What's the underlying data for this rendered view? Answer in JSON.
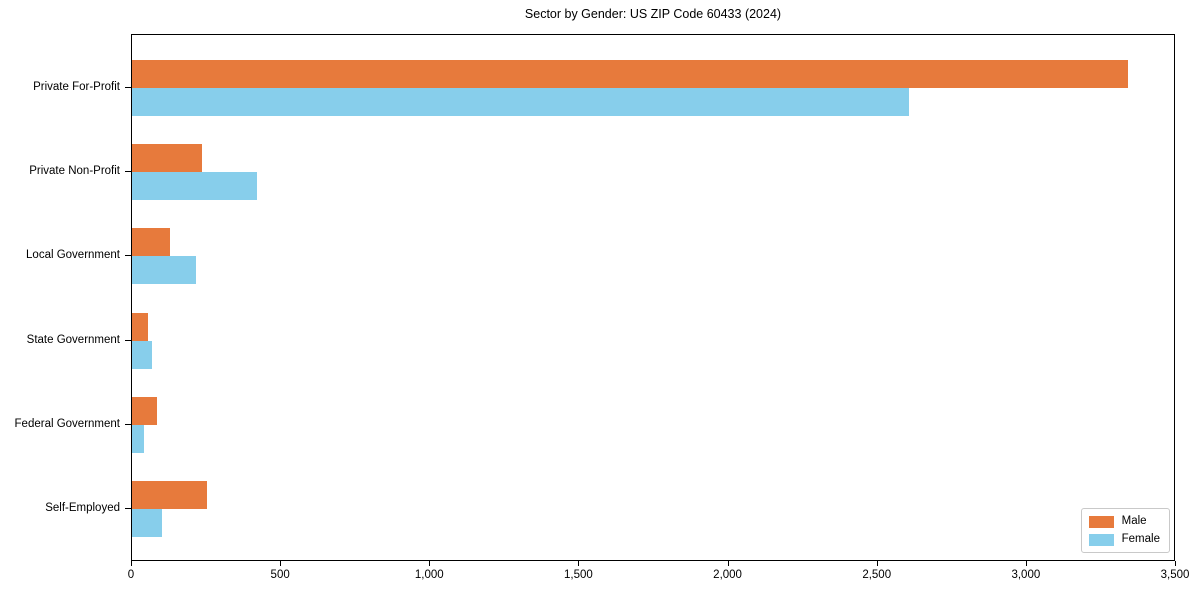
{
  "title": "Sector by Gender: US ZIP Code 60433 (2024)",
  "colors": {
    "male": "#e77a3c",
    "female": "#87ceeb",
    "axis": "#000000",
    "legend_border": "#c9c9c9",
    "background": "#ffffff"
  },
  "chart_data": {
    "type": "bar",
    "orientation": "horizontal",
    "title": "Sector by Gender: US ZIP Code 60433 (2024)",
    "categories": [
      "Private For-Profit",
      "Private Non-Profit",
      "Local Government",
      "State Government",
      "Federal Government",
      "Self-Employed"
    ],
    "series": [
      {
        "name": "Male",
        "color": "#e77a3c",
        "values": [
          3345,
          235,
          127,
          54,
          84,
          251
        ]
      },
      {
        "name": "Female",
        "color": "#87ceeb",
        "values": [
          2610,
          420,
          215,
          67,
          40,
          100
        ]
      }
    ],
    "xlabel": "",
    "ylabel": "",
    "xlim": [
      0,
      3500
    ],
    "x_tick_values": [
      0,
      500,
      1000,
      1500,
      2000,
      2500,
      3000,
      3500
    ],
    "x_tick_labels": [
      "0",
      "500",
      "1,000",
      "1,500",
      "2,000",
      "2,500",
      "3,000",
      "3,500"
    ],
    "grid": false,
    "legend": {
      "position": "lower right",
      "entries": [
        "Male",
        "Female"
      ]
    }
  }
}
